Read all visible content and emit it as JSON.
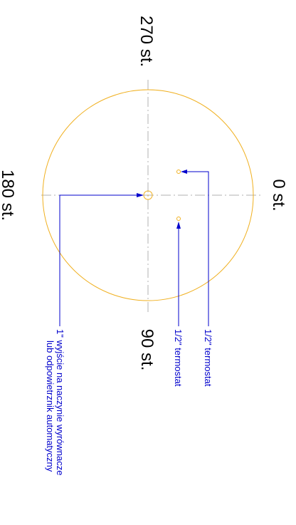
{
  "drawing": {
    "angle_labels": {
      "deg_0": "0 st.",
      "deg_90": "90 st.",
      "deg_180": "180 st.",
      "deg_270": "270 st."
    },
    "callouts": {
      "thermostat_top": "1/2\" termostat",
      "thermostat_bottom": "1/2\" termostat",
      "outlet_line1": "1\" wyjście na naczynie wyrównacze",
      "outlet_line2": "lub odpowietrznik automatyczny"
    },
    "colors": {
      "circle": "#f0b020",
      "leader": "#0000cc",
      "centerline": "#b0b0b0",
      "text": "#000000"
    }
  }
}
